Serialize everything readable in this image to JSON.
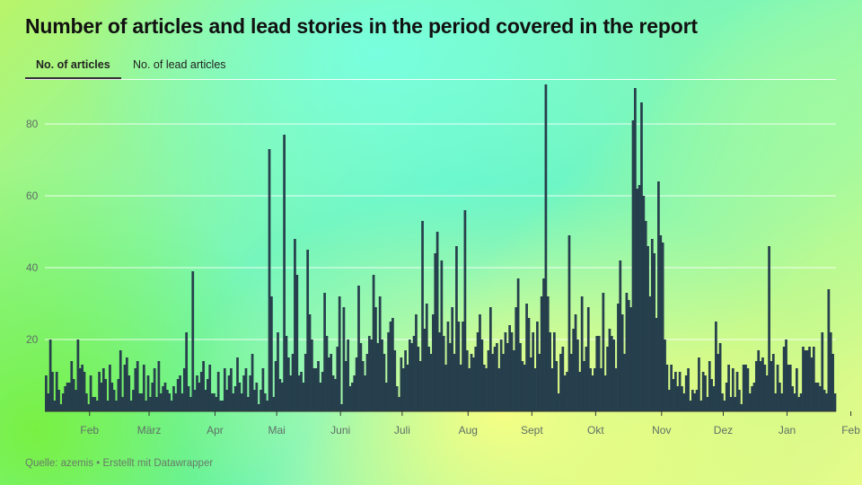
{
  "title": "Number of articles and lead stories in the period covered in the report",
  "tabs": [
    {
      "label": "No. of articles",
      "active": true
    },
    {
      "label": "No. of lead articles",
      "active": false
    }
  ],
  "source": "Quelle: azemis • Erstellt mit Datawrapper",
  "colors": {
    "bar": "#263f4c",
    "grid": "#ffffff",
    "axis_text": "#5f6f67"
  },
  "chart_data": {
    "type": "bar",
    "title": "Number of articles and lead stories in the period covered in the report",
    "series": [
      {
        "name": "No. of articles"
      }
    ],
    "ylim": [
      0,
      92
    ],
    "yticks": [
      20,
      40,
      60,
      80
    ],
    "x_tick_labels": [
      "Feb",
      "März",
      "Apr",
      "Mai",
      "Juni",
      "Juli",
      "Aug",
      "Sept",
      "Okt",
      "Nov",
      "Dez",
      "Jan",
      "Feb"
    ],
    "x_tick_index": [
      21,
      49,
      80,
      109,
      139,
      168,
      199,
      229,
      259,
      290,
      319,
      349,
      379
    ],
    "grid": true,
    "values": [
      10,
      5,
      20,
      11,
      3,
      11,
      6,
      2,
      5,
      7,
      8,
      8,
      14,
      9,
      6,
      20,
      12,
      13,
      11,
      5,
      2,
      10,
      4,
      4,
      3,
      11,
      8,
      12,
      9,
      3,
      13,
      8,
      6,
      3,
      9,
      17,
      4,
      13,
      15,
      10,
      3,
      6,
      12,
      14,
      5,
      5,
      13,
      3,
      10,
      4,
      8,
      12,
      4,
      14,
      5,
      7,
      8,
      6,
      5,
      3,
      7,
      5,
      9,
      10,
      5,
      12,
      22,
      7,
      4,
      39,
      6,
      10,
      8,
      11,
      14,
      6,
      9,
      13,
      5,
      5,
      4,
      11,
      3,
      3,
      12,
      6,
      10,
      12,
      5,
      7,
      15,
      8,
      5,
      10,
      12,
      4,
      10,
      16,
      6,
      8,
      2,
      6,
      12,
      5,
      3,
      73,
      32,
      4,
      14,
      22,
      9,
      8,
      77,
      21,
      15,
      10,
      16,
      48,
      38,
      10,
      11,
      8,
      16,
      45,
      27,
      20,
      12,
      12,
      14,
      8,
      11,
      33,
      21,
      15,
      16,
      10,
      9,
      18,
      32,
      2,
      29,
      14,
      20,
      7,
      8,
      10,
      15,
      35,
      19,
      14,
      10,
      16,
      21,
      20,
      38,
      29,
      19,
      32,
      20,
      16,
      8,
      22,
      25,
      26,
      17,
      7,
      4,
      15,
      12,
      17,
      13,
      20,
      19,
      21,
      27,
      18,
      14,
      53,
      23,
      30,
      18,
      16,
      27,
      44,
      50,
      22,
      42,
      21,
      13,
      25,
      19,
      29,
      16,
      46,
      25,
      13,
      25,
      56,
      17,
      12,
      16,
      15,
      18,
      22,
      27,
      20,
      13,
      12,
      17,
      29,
      16,
      18,
      19,
      12,
      20,
      16,
      22,
      19,
      24,
      22,
      17,
      29,
      37,
      19,
      14,
      13,
      30,
      26,
      15,
      22,
      12,
      25,
      16,
      32,
      37,
      91,
      32,
      22,
      12,
      22,
      14,
      5,
      16,
      18,
      10,
      11,
      49,
      16,
      23,
      27,
      20,
      11,
      32,
      14,
      18,
      29,
      12,
      10,
      12,
      21,
      21,
      12,
      33,
      10,
      18,
      23,
      21,
      20,
      12,
      30,
      42,
      27,
      16,
      33,
      31,
      29,
      81,
      90,
      62,
      63,
      86,
      60,
      53,
      46,
      32,
      48,
      44,
      26,
      64,
      49,
      47,
      20,
      13,
      6,
      13,
      9,
      11,
      7,
      11,
      7,
      5,
      10,
      12,
      3,
      6,
      5,
      6,
      15,
      3,
      11,
      10,
      4,
      14,
      9,
      7,
      25,
      16,
      19,
      5,
      3,
      8,
      13,
      4,
      12,
      4,
      11,
      6,
      2,
      13,
      13,
      12,
      5,
      7,
      8,
      14,
      17,
      14,
      15,
      13,
      10,
      46,
      14,
      16,
      5,
      13,
      8,
      5,
      18,
      20,
      13,
      13,
      7,
      5,
      12,
      4,
      5,
      18,
      17,
      17,
      18,
      15,
      18,
      8,
      8,
      7,
      22,
      6,
      5,
      34,
      22,
      16,
      5
    ]
  }
}
